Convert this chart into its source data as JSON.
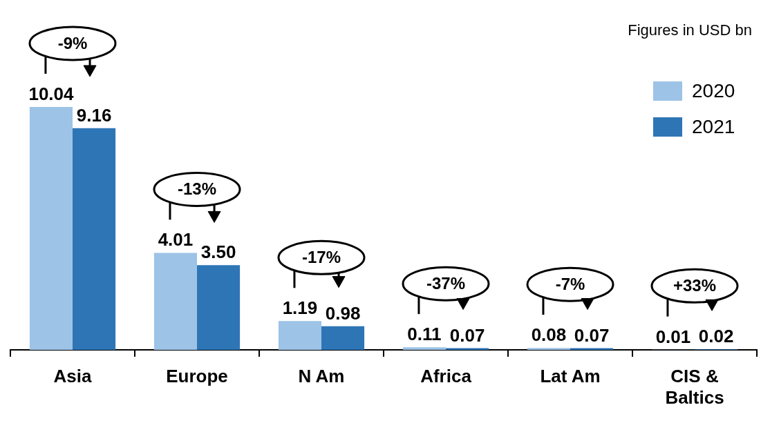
{
  "chart_data": {
    "type": "bar",
    "subtitle": "Figures in USD bn",
    "categories": [
      "Asia",
      "Europe",
      "N Am",
      "Africa",
      "Lat Am",
      "CIS & Baltics"
    ],
    "series": [
      {
        "name": "2020",
        "color": "#9dc3e6",
        "values": [
          10.04,
          4.01,
          1.19,
          0.11,
          0.08,
          0.01
        ],
        "value_labels": [
          "10.04",
          "4.01",
          "1.19",
          "0.11",
          "0.08",
          "0.01"
        ]
      },
      {
        "name": "2021",
        "color": "#2e75b6",
        "values": [
          9.16,
          3.5,
          0.98,
          0.07,
          0.07,
          0.02
        ],
        "value_labels": [
          "9.16",
          "3.50",
          "0.98",
          "0.07",
          "0.07",
          "0.02"
        ]
      }
    ],
    "annotations": [
      "-9%",
      "-13%",
      "-17%",
      "-37%",
      "-7%",
      "+33%"
    ],
    "legend": "top right",
    "tick_labels": "x"
  }
}
